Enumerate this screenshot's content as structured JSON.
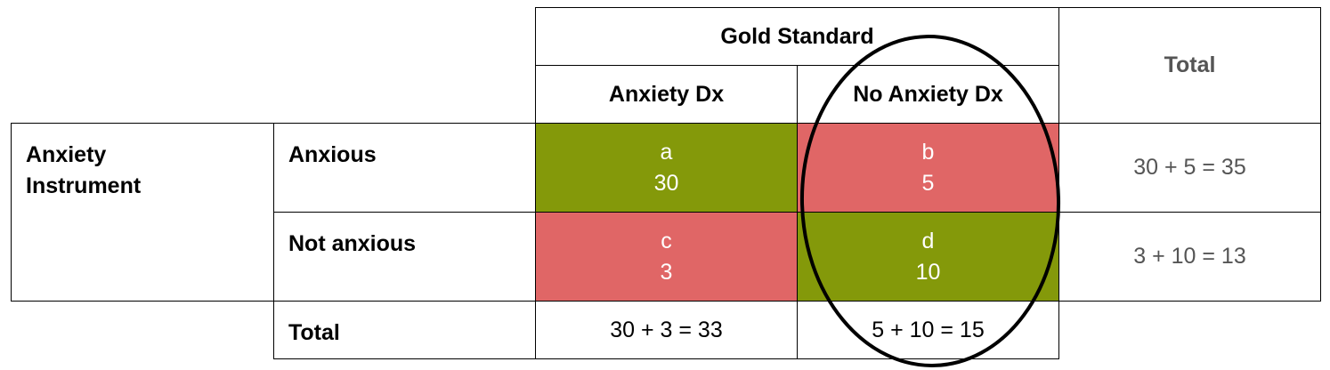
{
  "header": {
    "gold_standard": "Gold Standard",
    "total": "Total",
    "anxiety_dx": "Anxiety Dx",
    "no_anxiety_dx": "No Anxiety Dx"
  },
  "rows": {
    "instrument_label": "Anxiety Instrument",
    "anxious": "Anxious",
    "not_anxious": "Not anxious",
    "total": "Total"
  },
  "cells": {
    "a": {
      "letter": "a",
      "value": "30",
      "color": "#84990a"
    },
    "b": {
      "letter": "b",
      "value": "5",
      "color": "#e06666"
    },
    "c": {
      "letter": "c",
      "value": "3",
      "color": "#e06666"
    },
    "d": {
      "letter": "d",
      "value": "10",
      "color": "#84990a"
    }
  },
  "totals": {
    "anxious_row": "30 + 5 = 35",
    "not_anxious_row": "3 + 10 = 13",
    "anxiety_dx_col": "30 + 3 = 33",
    "no_anxiety_dx_col": "5 + 10 = 15"
  },
  "annotation": {
    "ellipse_color": "#000000"
  }
}
